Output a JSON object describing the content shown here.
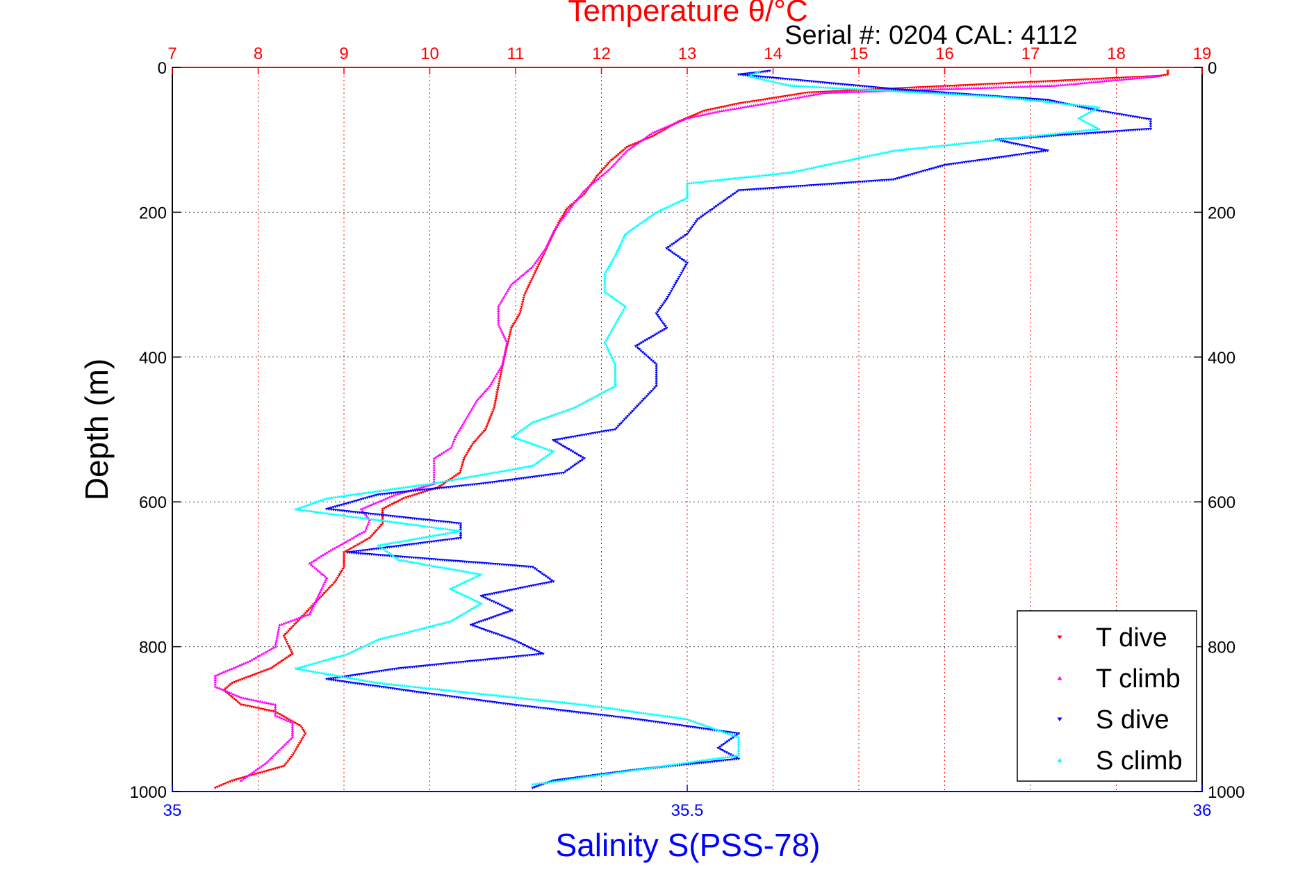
{
  "chart_data": {
    "type": "scatter",
    "title": "Temperature θ/°C",
    "subtitle": "Serial #: 0204  CAL: 4112",
    "ylabel": "Depth (m)",
    "xlabel_bottom": "Salinity S(PSS-78)",
    "xlabel_top": "Temperature θ/°C",
    "ylim": [
      0,
      1000
    ],
    "y_reversed": true,
    "y_ticks": [
      "0",
      "200",
      "400",
      "600",
      "800",
      "1000"
    ],
    "temp_axis": {
      "range": [
        7,
        19
      ],
      "ticks": [
        "7",
        "8",
        "9",
        "10",
        "11",
        "12",
        "13",
        "14",
        "15",
        "16",
        "17",
        "18",
        "19"
      ],
      "color": "#ff0000"
    },
    "sal_axis": {
      "range": [
        35,
        36
      ],
      "ticks": [
        "35",
        "35.5",
        "36"
      ],
      "color": "#0000ff"
    },
    "grid": true,
    "legend_placement": "bottom-right",
    "series": [
      {
        "name": "T dive",
        "axis": "temp",
        "color": "#ff0000",
        "marker": "triangle-down",
        "points": [
          [
            18.6,
            5
          ],
          [
            18.6,
            10
          ],
          [
            18.5,
            12
          ],
          [
            14.4,
            35
          ],
          [
            13.6,
            50
          ],
          [
            13.2,
            60
          ],
          [
            12.9,
            75
          ],
          [
            12.6,
            95
          ],
          [
            12.3,
            110
          ],
          [
            12.1,
            130
          ],
          [
            11.95,
            150
          ],
          [
            11.8,
            175
          ],
          [
            11.6,
            195
          ],
          [
            11.5,
            215
          ],
          [
            11.4,
            240
          ],
          [
            11.3,
            265
          ],
          [
            11.2,
            290
          ],
          [
            11.1,
            315
          ],
          [
            11.05,
            340
          ],
          [
            10.95,
            360
          ],
          [
            10.9,
            385
          ],
          [
            10.85,
            410
          ],
          [
            10.8,
            440
          ],
          [
            10.75,
            470
          ],
          [
            10.65,
            500
          ],
          [
            10.5,
            520
          ],
          [
            10.4,
            540
          ],
          [
            10.35,
            560
          ],
          [
            10.1,
            580
          ],
          [
            9.7,
            595
          ],
          [
            9.45,
            610
          ],
          [
            9.45,
            630
          ],
          [
            9.3,
            650
          ],
          [
            9.0,
            670
          ],
          [
            9.0,
            690
          ],
          [
            8.9,
            710
          ],
          [
            8.7,
            735
          ],
          [
            8.5,
            760
          ],
          [
            8.3,
            785
          ],
          [
            8.4,
            810
          ],
          [
            8.15,
            830
          ],
          [
            7.7,
            850
          ],
          [
            7.6,
            860
          ],
          [
            7.8,
            880
          ],
          [
            8.2,
            890
          ],
          [
            8.5,
            910
          ],
          [
            8.55,
            920
          ],
          [
            8.4,
            950
          ],
          [
            8.3,
            965
          ],
          [
            8.0,
            975
          ],
          [
            7.7,
            985
          ],
          [
            7.5,
            995
          ]
        ]
      },
      {
        "name": "T climb",
        "axis": "temp",
        "color": "#ff00ff",
        "marker": "triangle-up",
        "points": [
          [
            18.5,
            12
          ],
          [
            17.3,
            25
          ],
          [
            14.6,
            35
          ],
          [
            13.9,
            50
          ],
          [
            13.4,
            60
          ],
          [
            13.0,
            70
          ],
          [
            12.6,
            90
          ],
          [
            12.3,
            115
          ],
          [
            12.1,
            140
          ],
          [
            11.8,
            170
          ],
          [
            11.6,
            200
          ],
          [
            11.45,
            225
          ],
          [
            11.35,
            250
          ],
          [
            11.2,
            275
          ],
          [
            10.95,
            300
          ],
          [
            10.8,
            330
          ],
          [
            10.8,
            355
          ],
          [
            10.9,
            380
          ],
          [
            10.85,
            410
          ],
          [
            10.7,
            440
          ],
          [
            10.55,
            460
          ],
          [
            10.4,
            490
          ],
          [
            10.3,
            510
          ],
          [
            10.25,
            525
          ],
          [
            10.05,
            540
          ],
          [
            10.05,
            575
          ],
          [
            9.6,
            590
          ],
          [
            9.2,
            610
          ],
          [
            9.3,
            625
          ],
          [
            9.25,
            640
          ],
          [
            8.8,
            670
          ],
          [
            8.6,
            685
          ],
          [
            8.8,
            705
          ],
          [
            8.7,
            730
          ],
          [
            8.6,
            755
          ],
          [
            8.25,
            770
          ],
          [
            8.2,
            800
          ],
          [
            7.9,
            820
          ],
          [
            7.5,
            840
          ],
          [
            7.5,
            855
          ],
          [
            7.8,
            870
          ],
          [
            8.2,
            880
          ],
          [
            8.2,
            895
          ],
          [
            8.4,
            905
          ],
          [
            8.4,
            925
          ],
          [
            8.1,
            960
          ],
          [
            7.8,
            985
          ]
        ]
      },
      {
        "name": "S dive",
        "axis": "sal",
        "color": "#0000ff",
        "marker": "triangle-down",
        "points": [
          [
            35.58,
            5
          ],
          [
            35.55,
            10
          ],
          [
            35.7,
            30
          ],
          [
            35.85,
            45
          ],
          [
            35.9,
            60
          ],
          [
            35.95,
            72
          ],
          [
            35.95,
            85
          ],
          [
            35.8,
            100
          ],
          [
            35.85,
            115
          ],
          [
            35.75,
            135
          ],
          [
            35.7,
            155
          ],
          [
            35.55,
            170
          ],
          [
            35.53,
            190
          ],
          [
            35.51,
            210
          ],
          [
            35.5,
            230
          ],
          [
            35.48,
            250
          ],
          [
            35.5,
            270
          ],
          [
            35.49,
            295
          ],
          [
            35.48,
            320
          ],
          [
            35.47,
            340
          ],
          [
            35.48,
            360
          ],
          [
            35.45,
            385
          ],
          [
            35.47,
            410
          ],
          [
            35.47,
            440
          ],
          [
            35.45,
            470
          ],
          [
            35.43,
            500
          ],
          [
            35.37,
            515
          ],
          [
            35.4,
            540
          ],
          [
            35.38,
            560
          ],
          [
            35.3,
            575
          ],
          [
            35.2,
            590
          ],
          [
            35.15,
            610
          ],
          [
            35.28,
            630
          ],
          [
            35.28,
            650
          ],
          [
            35.17,
            670
          ],
          [
            35.35,
            690
          ],
          [
            35.37,
            710
          ],
          [
            35.3,
            730
          ],
          [
            35.33,
            750
          ],
          [
            35.29,
            770
          ],
          [
            35.33,
            790
          ],
          [
            35.36,
            810
          ],
          [
            35.22,
            830
          ],
          [
            35.15,
            845
          ],
          [
            35.25,
            865
          ],
          [
            35.33,
            880
          ],
          [
            35.45,
            900
          ],
          [
            35.55,
            920
          ],
          [
            35.53,
            940
          ],
          [
            35.55,
            955
          ],
          [
            35.45,
            970
          ],
          [
            35.37,
            985
          ],
          [
            35.35,
            995
          ]
        ]
      },
      {
        "name": "S climb",
        "axis": "sal",
        "color": "#00ffff",
        "marker": "triangle-up",
        "points": [
          [
            35.57,
            5
          ],
          [
            35.56,
            12
          ],
          [
            35.6,
            25
          ],
          [
            35.8,
            40
          ],
          [
            35.9,
            55
          ],
          [
            35.88,
            70
          ],
          [
            35.9,
            85
          ],
          [
            35.8,
            100
          ],
          [
            35.7,
            115
          ],
          [
            35.65,
            130
          ],
          [
            35.6,
            145
          ],
          [
            35.5,
            160
          ],
          [
            35.5,
            180
          ],
          [
            35.47,
            200
          ],
          [
            35.44,
            230
          ],
          [
            35.43,
            260
          ],
          [
            35.42,
            285
          ],
          [
            35.42,
            310
          ],
          [
            35.44,
            330
          ],
          [
            35.43,
            355
          ],
          [
            35.42,
            380
          ],
          [
            35.43,
            410
          ],
          [
            35.43,
            440
          ],
          [
            35.39,
            470
          ],
          [
            35.35,
            490
          ],
          [
            35.33,
            510
          ],
          [
            35.37,
            530
          ],
          [
            35.35,
            550
          ],
          [
            35.25,
            575
          ],
          [
            35.15,
            595
          ],
          [
            35.12,
            610
          ],
          [
            35.2,
            625
          ],
          [
            35.28,
            640
          ],
          [
            35.2,
            660
          ],
          [
            35.22,
            680
          ],
          [
            35.3,
            700
          ],
          [
            35.27,
            720
          ],
          [
            35.3,
            740
          ],
          [
            35.27,
            765
          ],
          [
            35.2,
            790
          ],
          [
            35.17,
            810
          ],
          [
            35.12,
            830
          ],
          [
            35.2,
            850
          ],
          [
            35.3,
            865
          ],
          [
            35.4,
            880
          ],
          [
            35.5,
            900
          ],
          [
            35.55,
            925
          ],
          [
            35.55,
            950
          ],
          [
            35.45,
            970
          ],
          [
            35.35,
            990
          ]
        ]
      }
    ]
  }
}
